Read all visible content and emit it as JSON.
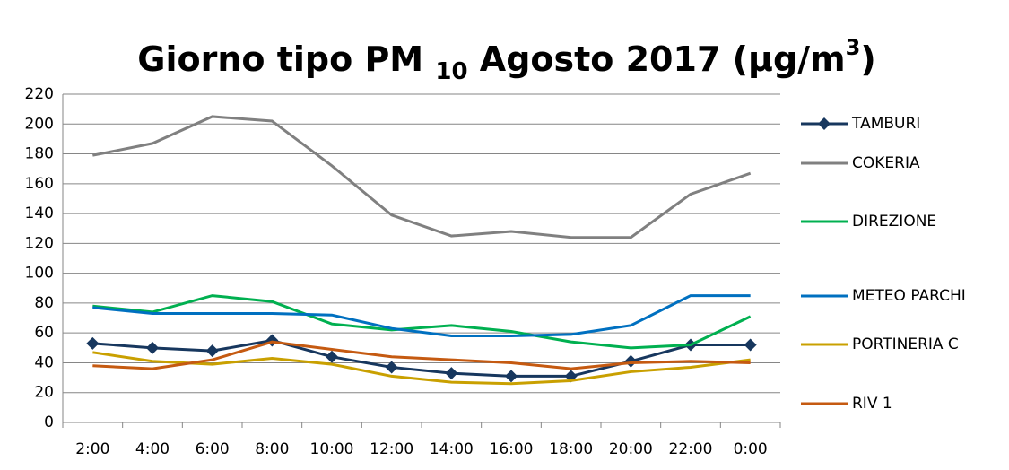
{
  "chart_data": {
    "type": "line",
    "title": "Giorno tipo PM",
    "title_subscript": "10",
    "title_rest": "Agosto 2017 (µg/m",
    "title_superscript": "3",
    "title_end": ")",
    "categories": [
      "2:00",
      "4:00",
      "6:00",
      "8:00",
      "10:00",
      "12:00",
      "14:00",
      "16:00",
      "18:00",
      "20:00",
      "22:00",
      "0:00"
    ],
    "ylim": [
      0,
      220
    ],
    "yticks": [
      0,
      20,
      40,
      60,
      80,
      100,
      120,
      140,
      160,
      180,
      200,
      220
    ],
    "grid": true,
    "legend": "right",
    "series": [
      {
        "name": "TAMBURI",
        "color": "#17375e",
        "marker": "diamond",
        "values": [
          53,
          50,
          48,
          55,
          44,
          37,
          33,
          31,
          31,
          41,
          52,
          52
        ]
      },
      {
        "name": "COKERIA",
        "color": "#808080",
        "values": [
          179,
          187,
          205,
          202,
          172,
          139,
          125,
          128,
          124,
          124,
          153,
          167
        ]
      },
      {
        "name": "DIREZIONE",
        "color": "#00b050",
        "values": [
          78,
          74,
          85,
          81,
          66,
          62,
          65,
          61,
          54,
          50,
          52,
          71
        ]
      },
      {
        "name": "METEO PARCHI",
        "color": "#0070c0",
        "values": [
          77,
          73,
          73,
          73,
          72,
          63,
          58,
          58,
          59,
          65,
          85,
          85
        ]
      },
      {
        "name": "PORTINERIA C",
        "color": "#c9a000",
        "values": [
          47,
          41,
          39,
          43,
          39,
          31,
          27,
          26,
          28,
          34,
          37,
          42
        ]
      },
      {
        "name": "RIV 1",
        "color": "#c55a11",
        "values": [
          38,
          36,
          42,
          54,
          49,
          44,
          42,
          40,
          36,
          40,
          41,
          40
        ]
      }
    ]
  }
}
